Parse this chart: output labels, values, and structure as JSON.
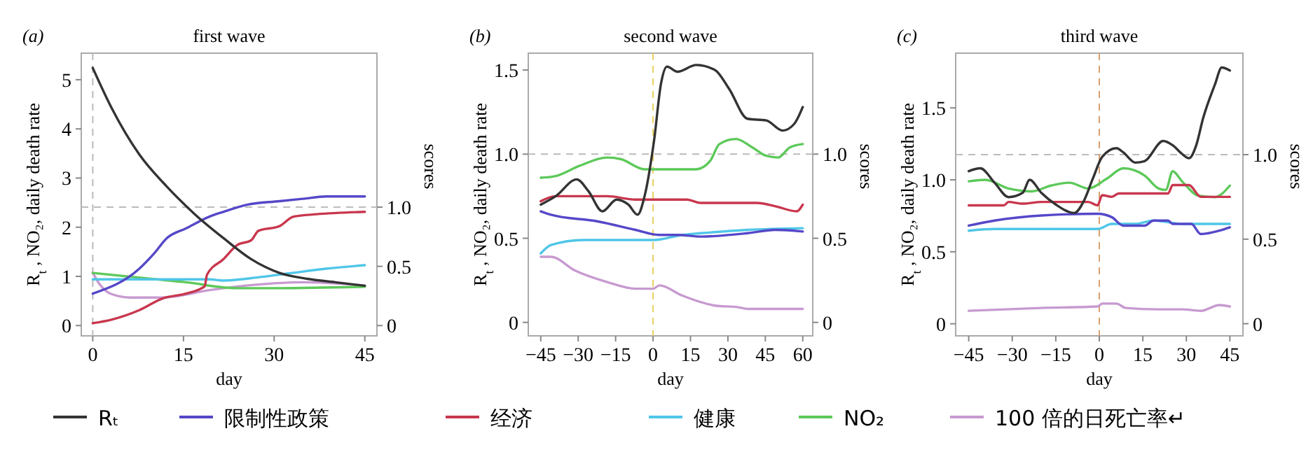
{
  "chart_data": [
    {
      "type": "line",
      "title": "first wave",
      "annotations": [
        "(a)"
      ],
      "xlabel": "day",
      "ylabel": "R$_{t}$, NO₂, daily death rate",
      "y2label": "scores",
      "legend": "bottom",
      "xlim": [
        -1.9,
        47
      ],
      "xticks": [
        0,
        15,
        30,
        45
      ],
      "ylim": [
        -0.21,
        5.54
      ],
      "yticks": [
        0,
        1,
        2,
        3,
        4,
        5
      ],
      "y2lim": [
        -0.087,
        2.3
      ],
      "y2ticks": [
        {
          "value": 0,
          "label": "0"
        },
        {
          "value": 0.5,
          "label": "0.5"
        },
        {
          "value": 1,
          "label": "1.0"
        }
      ],
      "ref_lines": [
        {
          "axis": "y2",
          "value": 1,
          "color": "#bbbbbb",
          "line_style": "dashed"
        },
        {
          "axis": "x",
          "value": 0,
          "color": "#bbbbbb",
          "line_style": "dashed"
        }
      ],
      "series": [
        {
          "name": "Rₜ",
          "color": "#333333",
          "x": [
            0,
            3.1,
            7.7,
            12.3,
            17,
            21.6,
            26.2,
            30.9,
            35.5,
            40.1,
            45
          ],
          "values": [
            5.24,
            4.43,
            3.48,
            2.82,
            2.25,
            1.78,
            1.35,
            1.07,
            0.95,
            0.88,
            0.81
          ]
        },
        {
          "name": "限制性政策",
          "color": "#5548c8",
          "axis": "y2",
          "x": [
            0,
            7.7,
            10,
            12.3,
            15.4,
            19.3,
            21.6,
            25.5,
            30.9,
            34.7,
            38.6,
            45
          ],
          "values": [
            0.27,
            0.48,
            0.6,
            0.74,
            0.82,
            0.92,
            0.96,
            1.02,
            1.05,
            1.07,
            1.09,
            1.09
          ]
        },
        {
          "name": "经济",
          "color": "#c8374e",
          "axis": "y2",
          "x": [
            0,
            3.1,
            7.7,
            11.6,
            15.4,
            18.5,
            18.9,
            21.6,
            23.9,
            26.2,
            27.4,
            30.9,
            33.2,
            37,
            45
          ],
          "values": [
            0.02,
            0.05,
            0.13,
            0.23,
            0.27,
            0.33,
            0.43,
            0.56,
            0.68,
            0.72,
            0.8,
            0.84,
            0.92,
            0.94,
            0.96
          ]
        },
        {
          "name": "健康",
          "color": "#4fc6e8",
          "axis": "y2",
          "x": [
            0,
            7.7,
            19.3,
            21.6,
            27.8,
            32.4,
            38.6,
            45
          ],
          "values": [
            0.39,
            0.39,
            0.39,
            0.38,
            0.41,
            0.44,
            0.48,
            0.51
          ]
        },
        {
          "name": "NO₂",
          "color": "#5dc95a",
          "x": [
            0,
            15.4,
            23.9,
            30.9,
            45
          ],
          "values": [
            1.07,
            0.88,
            0.76,
            0.76,
            0.79
          ]
        },
        {
          "name": "100 倍的日死亡率↵",
          "color": "#c79ad0",
          "x": [
            0,
            1.2,
            3.1,
            6.2,
            11.6,
            19.3,
            27,
            34.7,
            45
          ],
          "values": [
            1.07,
            0.83,
            0.64,
            0.57,
            0.57,
            0.72,
            0.83,
            0.88,
            0.81
          ]
        }
      ]
    },
    {
      "type": "line",
      "title": "second wave",
      "annotations": [
        "(b)"
      ],
      "xlabel": "day",
      "ylabel": "R$_{t}$, NO₂, daily death rate",
      "y2label": "scores",
      "xlim": [
        -50,
        64
      ],
      "xticks": [
        -45,
        -30,
        -15,
        0,
        15,
        30,
        45,
        60
      ],
      "ylim": [
        -0.08,
        1.6
      ],
      "yticks": [
        0,
        0.5,
        {
          "value": 1,
          "label": "1.0"
        },
        1.5
      ],
      "y2lim": [
        -0.08,
        1.6
      ],
      "y2ticks": [
        {
          "value": 0,
          "label": "0"
        },
        {
          "value": 0.5,
          "label": "0.5"
        },
        {
          "value": 1,
          "label": "1.0"
        }
      ],
      "ref_lines": [
        {
          "axis": "y",
          "value": 1,
          "color": "#bbbbbb",
          "line_style": "dashed"
        },
        {
          "axis": "x",
          "value": 0,
          "color": "#e8d060",
          "line_style": "dashed"
        }
      ],
      "series": [
        {
          "color": "#333333",
          "x": [
            -45,
            -39,
            -30.6,
            -25.9,
            -20.3,
            -14.6,
            -9.9,
            -6.2,
            -3.4,
            0.4,
            3.2,
            5.6,
            9.8,
            17.3,
            24.8,
            30.4,
            37.9,
            45.4,
            51.9,
            56.6,
            60
          ],
          "values": [
            0.7,
            0.75,
            0.85,
            0.78,
            0.66,
            0.73,
            0.7,
            0.64,
            0.75,
            1.08,
            1.42,
            1.52,
            1.49,
            1.53,
            1.5,
            1.39,
            1.21,
            1.2,
            1.14,
            1.18,
            1.28
          ]
        },
        {
          "color": "#5548c8",
          "axis": "y2",
          "x": [
            -45,
            -40.9,
            -22.1,
            -7.1,
            2.3,
            9.8,
            19.1,
            37.9,
            49.1,
            60
          ],
          "values": [
            0.66,
            0.64,
            0.6,
            0.55,
            0.52,
            0.52,
            0.51,
            0.53,
            0.55,
            0.54
          ]
        },
        {
          "color": "#c8374e",
          "axis": "y2",
          "x": [
            -45,
            -39,
            -18.4,
            -7.1,
            13.5,
            19.1,
            41.6,
            49.1,
            57.6,
            60
          ],
          "values": [
            0.72,
            0.75,
            0.75,
            0.73,
            0.73,
            0.71,
            0.71,
            0.69,
            0.66,
            0.7
          ]
        },
        {
          "color": "#4fc6e8",
          "axis": "y2",
          "x": [
            -45,
            -40.9,
            -27.8,
            0.4,
            11.6,
            19.1,
            37.9,
            60
          ],
          "values": [
            0.41,
            0.46,
            0.49,
            0.49,
            0.52,
            0.53,
            0.55,
            0.56
          ]
        },
        {
          "color": "#5dc95a",
          "x": [
            -45,
            -39,
            -29.6,
            -18.4,
            -12.8,
            -3.4,
            0.4,
            17.3,
            22.9,
            26.6,
            33.2,
            39.8,
            45.4,
            50.1,
            54.8,
            60
          ],
          "values": [
            0.86,
            0.87,
            0.93,
            0.98,
            0.97,
            0.91,
            0.91,
            0.91,
            0.96,
            1.06,
            1.09,
            1.04,
            0.99,
            0.98,
            1.04,
            1.06
          ]
        },
        {
          "color": "#c79ad0",
          "x": [
            -45,
            -40.9,
            -31.5,
            -18.4,
            -7.1,
            0,
            2.6,
            11.6,
            24.8,
            34.1,
            37.9,
            60
          ],
          "values": [
            0.39,
            0.39,
            0.31,
            0.24,
            0.2,
            0.2,
            0.22,
            0.16,
            0.1,
            0.09,
            0.08,
            0.08
          ]
        }
      ]
    },
    {
      "type": "line",
      "title": "third wave",
      "annotations": [
        "(c)"
      ],
      "xlabel": "day",
      "ylabel": "R$_{t}$, NO₂, daily death rate",
      "y2label": "scores",
      "xlim": [
        -49.5,
        49.5
      ],
      "xticks": [
        -45,
        -30,
        -15,
        0,
        15,
        30,
        45
      ],
      "ylim": [
        -0.084,
        1.88
      ],
      "yticks": [
        0,
        0.5,
        {
          "value": 1,
          "label": "1.0"
        },
        1.5
      ],
      "y2lim": [
        -0.072,
        1.6
      ],
      "y2ticks": [
        {
          "value": 0,
          "label": "0"
        },
        {
          "value": 0.5,
          "label": "0.5"
        },
        {
          "value": 1,
          "label": "1.0"
        }
      ],
      "ref_lines": [
        {
          "axis": "y2",
          "value": 1,
          "color": "#bbbbbb",
          "line_style": "dashed"
        },
        {
          "axis": "x",
          "value": 0,
          "color": "#d9a070",
          "line_style": "dashed"
        }
      ],
      "series": [
        {
          "color": "#333333",
          "x": [
            -45,
            -41,
            -36.1,
            -31.3,
            -26.4,
            -24,
            -20,
            -15.1,
            -8.6,
            -5.4,
            -2.2,
            1,
            5.9,
            8.3,
            12.4,
            15.6,
            22,
            25.3,
            28.5,
            30.9,
            33.4,
            35.8,
            39.8,
            42.2,
            45
          ],
          "values": [
            1.06,
            1.08,
            0.98,
            0.88,
            0.91,
            1,
            0.91,
            0.83,
            0.77,
            0.85,
            1.01,
            1.16,
            1.22,
            1.19,
            1.12,
            1.13,
            1.27,
            1.24,
            1.18,
            1.15,
            1.24,
            1.43,
            1.66,
            1.78,
            1.76
          ]
        },
        {
          "color": "#5548c8",
          "axis": "y2",
          "x": [
            -45,
            -36.1,
            -20,
            -0.6,
            4.3,
            8.3,
            15.6,
            18.7,
            23.7,
            25.3,
            31.7,
            35,
            41.4,
            45
          ],
          "values": [
            0.58,
            0.61,
            0.64,
            0.65,
            0.63,
            0.58,
            0.58,
            0.61,
            0.61,
            0.59,
            0.59,
            0.53,
            0.55,
            0.57
          ]
        },
        {
          "color": "#c8374e",
          "axis": "y2",
          "x": [
            -45,
            -32.9,
            -31.3,
            -26.4,
            -20,
            -3.8,
            -0.6,
            1,
            4.3,
            6.7,
            23.7,
            25.3,
            30.9,
            35,
            45
          ],
          "values": [
            0.7,
            0.7,
            0.72,
            0.71,
            0.72,
            0.72,
            0.7,
            0.76,
            0.75,
            0.77,
            0.77,
            0.82,
            0.82,
            0.75,
            0.75
          ]
        },
        {
          "color": "#4fc6e8",
          "axis": "y2",
          "x": [
            -45,
            -36.1,
            -0.6,
            4.3,
            12.4,
            18.7,
            23.7,
            28.5,
            45
          ],
          "values": [
            0.55,
            0.56,
            0.56,
            0.59,
            0.59,
            0.61,
            0.6,
            0.59,
            0.59
          ]
        },
        {
          "color": "#5dc95a",
          "x": [
            -45,
            -39.3,
            -31.3,
            -23.2,
            -16.7,
            -10.3,
            -3.8,
            2.7,
            8.3,
            15.6,
            20.4,
            22.9,
            25.3,
            28.5,
            34.2,
            39.8,
            45
          ],
          "values": [
            0.99,
            1,
            0.94,
            0.92,
            0.96,
            0.98,
            0.94,
            1.01,
            1.08,
            1.03,
            0.94,
            0.93,
            1.06,
            0.99,
            0.89,
            0.88,
            0.96
          ]
        },
        {
          "color": "#c79ad0",
          "x": [
            -45,
            -20,
            -0.6,
            1,
            5.9,
            9.1,
            20.4,
            28.5,
            35,
            41.4,
            45
          ],
          "values": [
            0.09,
            0.11,
            0.12,
            0.14,
            0.14,
            0.11,
            0.1,
            0.1,
            0.09,
            0.13,
            0.12
          ]
        }
      ]
    }
  ]
}
